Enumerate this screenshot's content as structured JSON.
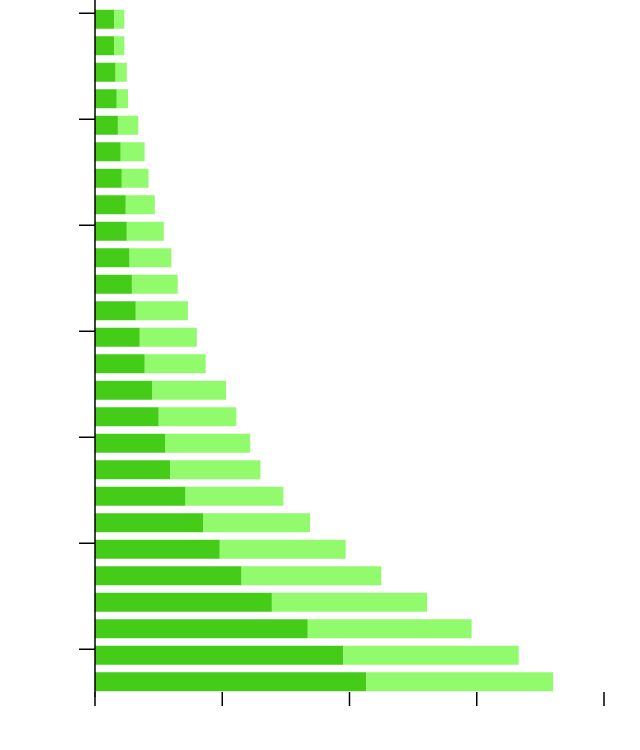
{
  "chart_data": {
    "type": "bar",
    "orientation": "horizontal",
    "stacked": true,
    "title": "",
    "xlabel": "",
    "ylabel": "",
    "xlim": [
      0,
      4
    ],
    "x_ticks": [
      0,
      1,
      2,
      3,
      4
    ],
    "y_tick_every": 4,
    "y_tick_first": 0,
    "grid": false,
    "legend": "none",
    "categories": [
      "",
      "",
      "",
      "",
      "",
      "",
      "",
      "",
      "",
      "",
      "",
      "",
      "",
      "",
      "",
      "",
      "",
      "",
      "",
      "",
      "",
      "",
      "",
      "",
      "",
      ""
    ],
    "series": [
      {
        "color": "#44cc19",
        "values": [
          2.13,
          1.95,
          1.67,
          1.39,
          1.15,
          0.98,
          0.85,
          0.71,
          0.59,
          0.55,
          0.5,
          0.45,
          0.39,
          0.35,
          0.32,
          0.29,
          0.27,
          0.25,
          0.24,
          0.21,
          0.2,
          0.18,
          0.17,
          0.16,
          0.15,
          0.15
        ]
      },
      {
        "color": "#92fa6d",
        "values": [
          1.47,
          1.38,
          1.29,
          1.22,
          1.1,
          0.99,
          0.84,
          0.77,
          0.71,
          0.67,
          0.61,
          0.58,
          0.48,
          0.45,
          0.41,
          0.36,
          0.33,
          0.29,
          0.23,
          0.21,
          0.19,
          0.16,
          0.09,
          0.09,
          0.08,
          0.08
        ]
      }
    ]
  }
}
